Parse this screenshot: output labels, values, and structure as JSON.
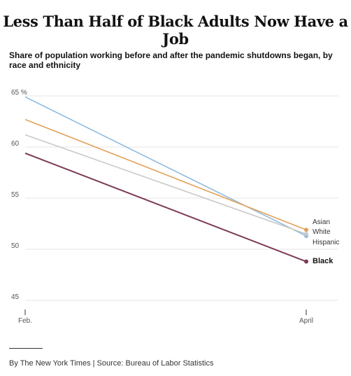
{
  "title": "Less Than Half of Black Adults Now Have a Job",
  "subtitle": "Share of population working before and after the pandemic shutdowns began, by race and ethnicity",
  "footer": "By The New York Times | Source: Bureau of Labor Statistics",
  "chart_data": {
    "type": "line",
    "x": [
      "Feb.",
      "April"
    ],
    "y_ticks": [
      45,
      50,
      55,
      60,
      65
    ],
    "y_unit": "%",
    "ylim": [
      44,
      66
    ],
    "grid": true,
    "series": [
      {
        "name": "White",
        "values": [
          64.9,
          51.3
        ],
        "color": "#8fbadf"
      },
      {
        "name": "Asian",
        "values": [
          62.7,
          51.9
        ],
        "color": "#e3a15b"
      },
      {
        "name": "Hispanic",
        "values": [
          61.2,
          51.5
        ],
        "color": "#c9c9c9"
      },
      {
        "name": "Black",
        "values": [
          59.4,
          48.8
        ],
        "color": "#7d3a58"
      }
    ]
  }
}
